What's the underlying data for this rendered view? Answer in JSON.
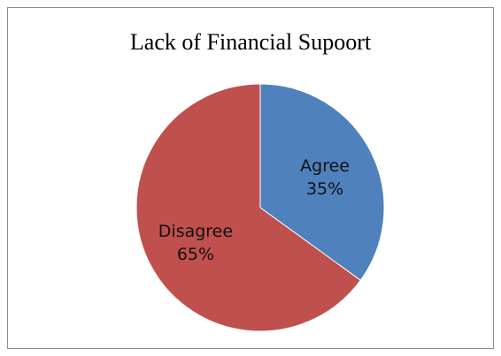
{
  "chart_data": {
    "type": "pie",
    "title": "Lack of Financial Supoort",
    "slices": [
      {
        "label": "Agree",
        "value": 35,
        "value_label": "35%",
        "color": "#4f81bd"
      },
      {
        "label": "Disagree",
        "value": 65,
        "value_label": "65%",
        "color": "#c0504d"
      }
    ],
    "start_angle": "12 o'clock",
    "direction": "clockwise",
    "legend": "none",
    "labels_inside": true
  }
}
